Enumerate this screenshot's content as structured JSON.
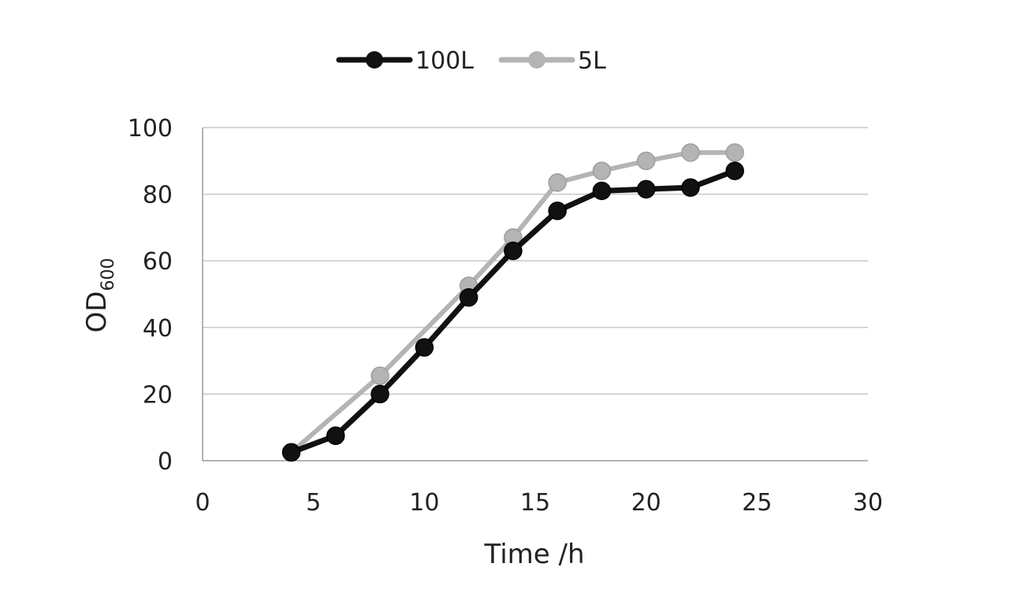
{
  "chart_data": {
    "type": "line",
    "title": "",
    "xlabel": "Time /h",
    "ylabel": "OD",
    "ylabel_subscript": "600",
    "xlim": [
      0,
      30
    ],
    "ylim": [
      0,
      100
    ],
    "x_ticks": [
      0,
      5,
      10,
      15,
      20,
      25,
      30
    ],
    "y_ticks": [
      0,
      20,
      40,
      60,
      80,
      100
    ],
    "grid": "horizontal",
    "legend_position": "top-center",
    "series": [
      {
        "name": "100L",
        "color": "#111111",
        "x": [
          4,
          6,
          8,
          10,
          12,
          14,
          16,
          18,
          20,
          22,
          24
        ],
        "values": [
          2.5,
          7.5,
          20,
          34,
          49,
          63,
          75,
          81,
          81.5,
          82,
          87
        ]
      },
      {
        "name": "5L",
        "color": "#b4b4b4",
        "x": [
          4,
          8,
          12,
          14,
          16,
          18,
          20,
          22,
          24
        ],
        "values": [
          2.5,
          25.5,
          52.5,
          67,
          83.5,
          87,
          90,
          92.5,
          92.5
        ]
      }
    ]
  }
}
